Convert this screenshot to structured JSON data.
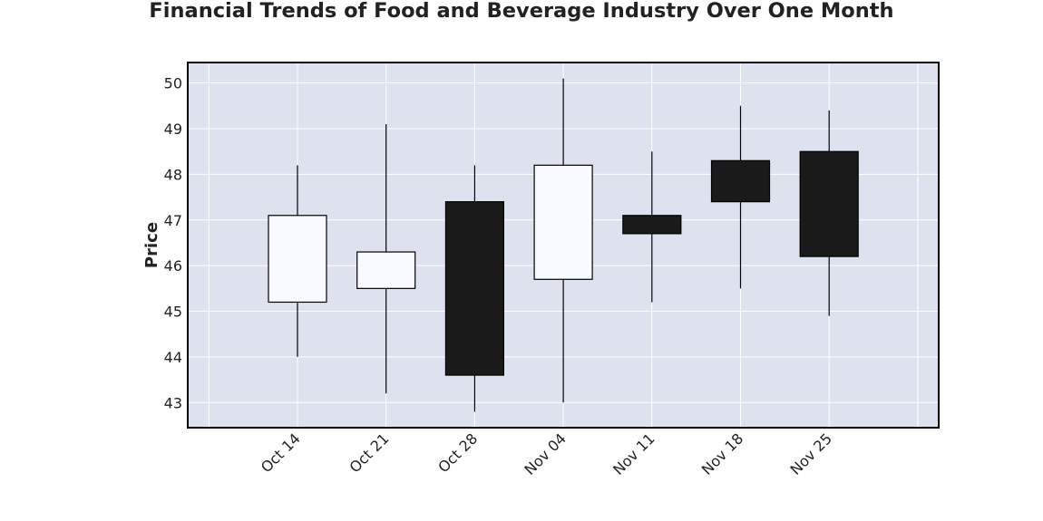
{
  "chart_data": {
    "type": "candlestick",
    "title": "Financial Trends of Food and Beverage Industry Over One Month",
    "xlabel": "",
    "ylabel": "Price",
    "categories": [
      "Oct 14",
      "Oct 21",
      "Oct 28",
      "Nov 04",
      "Nov 11",
      "Nov 18",
      "Nov 25"
    ],
    "series": [
      {
        "open": [
          45.2,
          45.5,
          47.4,
          45.7,
          47.1,
          48.3,
          48.5
        ],
        "high": [
          48.2,
          49.1,
          48.2,
          50.1,
          48.5,
          49.5,
          49.4
        ],
        "low": [
          44.0,
          43.2,
          42.8,
          43.0,
          45.2,
          45.5,
          44.9
        ],
        "close": [
          47.1,
          46.3,
          43.6,
          48.2,
          46.7,
          47.4,
          46.2
        ]
      }
    ],
    "ylim": [
      42.45,
      50.45
    ],
    "yticks": [
      43,
      44,
      45,
      46,
      47,
      48,
      49,
      50
    ],
    "grid": true,
    "colors": {
      "background": "#dde2ee",
      "grid": "#ffffff",
      "up_fill": "#f8faff",
      "down_fill": "#1a1a1a",
      "edge": "#000000"
    }
  }
}
